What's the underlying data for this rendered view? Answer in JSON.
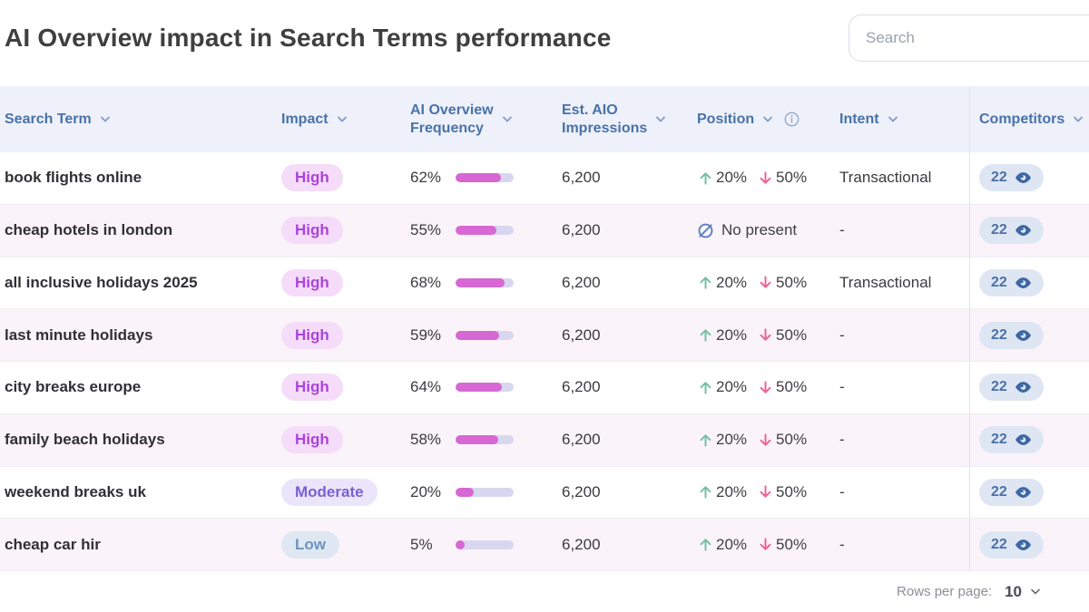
{
  "page": {
    "title": "AI Overview impact in Search Terms performance",
    "search": {
      "placeholder": "Search"
    }
  },
  "table": {
    "columns": [
      {
        "id": "search_term",
        "label": "Search Term"
      },
      {
        "id": "impact",
        "label": "Impact"
      },
      {
        "id": "ai_overview_frequency",
        "label": "AI Overview\nFrequency"
      },
      {
        "id": "est_aio_impressions",
        "label": "Est. AIO\nImpressions"
      },
      {
        "id": "position",
        "label": "Position",
        "has_info_icon": true
      },
      {
        "id": "intent",
        "label": "Intent"
      },
      {
        "id": "competitors",
        "label": "Competitors"
      }
    ],
    "rows": [
      {
        "term": "book flights online",
        "impact": "High",
        "frequency_label": "62%",
        "frequency_value": 62,
        "impressions": "6,200",
        "position": {
          "type": "change",
          "up": "20%",
          "down": "50%"
        },
        "intent": "Transactional",
        "competitors": "22"
      },
      {
        "term": "cheap hotels in london",
        "impact": "High",
        "frequency_label": "55%",
        "frequency_value": 55,
        "impressions": "6,200",
        "position": {
          "type": "none",
          "label": "No present"
        },
        "intent": "-",
        "competitors": "22"
      },
      {
        "term": "all inclusive holidays 2025",
        "impact": "High",
        "frequency_label": "68%",
        "frequency_value": 68,
        "impressions": "6,200",
        "position": {
          "type": "change",
          "up": "20%",
          "down": "50%"
        },
        "intent": "Transactional",
        "competitors": "22"
      },
      {
        "term": "last minute holidays",
        "impact": "High",
        "frequency_label": "59%",
        "frequency_value": 59,
        "impressions": "6,200",
        "position": {
          "type": "change",
          "up": "20%",
          "down": "50%"
        },
        "intent": "-",
        "competitors": "22"
      },
      {
        "term": "city breaks europe",
        "impact": "High",
        "frequency_label": "64%",
        "frequency_value": 64,
        "impressions": "6,200",
        "position": {
          "type": "change",
          "up": "20%",
          "down": "50%"
        },
        "intent": "-",
        "competitors": "22"
      },
      {
        "term": "family beach holidays",
        "impact": "High",
        "frequency_label": "58%",
        "frequency_value": 58,
        "impressions": "6,200",
        "position": {
          "type": "change",
          "up": "20%",
          "down": "50%"
        },
        "intent": "-",
        "competitors": "22"
      },
      {
        "term": "weekend breaks uk",
        "impact": "Moderate",
        "frequency_label": "20%",
        "frequency_value": 20,
        "impressions": "6,200",
        "position": {
          "type": "change",
          "up": "20%",
          "down": "50%"
        },
        "intent": "-",
        "competitors": "22"
      },
      {
        "term": "cheap car hir",
        "impact": "Low",
        "frequency_label": "5%",
        "frequency_value": 5,
        "impressions": "6,200",
        "position": {
          "type": "change",
          "up": "20%",
          "down": "50%"
        },
        "intent": "-",
        "competitors": "22"
      }
    ]
  },
  "footer": {
    "rows_per_page_label": "Rows per page:",
    "rows_per_page_value": "10"
  },
  "colors": {
    "header_bg": "#eef1fa",
    "header_text": "#4a72a8",
    "row_alt_bg": "#faf3f9",
    "impact_high_bg": "#f5dcf8",
    "impact_high_text": "#ab43dd",
    "impact_moderate_bg": "#eae5fa",
    "impact_moderate_text": "#7a5fd3",
    "impact_low_bg": "#dfe8f2",
    "impact_low_text": "#6b93bf",
    "bar_track": "#d8d7ef",
    "bar_fill": "#d767d2",
    "arrow_up": "#74c0a2",
    "arrow_down": "#ec6590",
    "competitors_pill_bg": "#dfe6f3",
    "competitors_text": "#4a72a8"
  }
}
